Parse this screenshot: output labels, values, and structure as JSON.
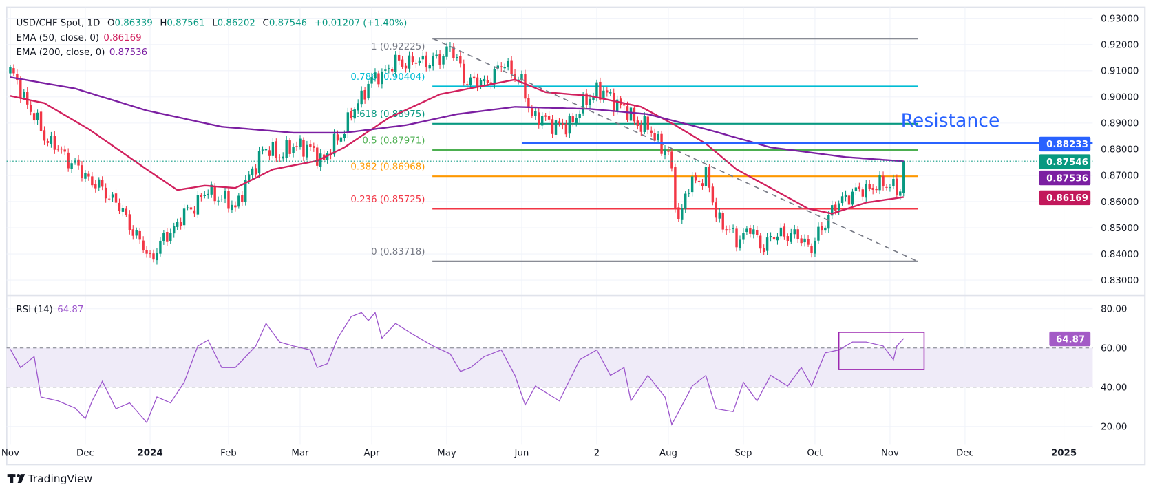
{
  "header": {
    "symbol": "USD/CHF Spot, 1D",
    "o_label": "O",
    "o_value": "0.86339",
    "h_label": "H",
    "h_value": "0.87561",
    "l_label": "L",
    "l_value": "0.86202",
    "c_label": "C",
    "c_value": "0.87546",
    "change": "+0.01207 (+1.40%)",
    "ema50_label": "EMA (50, close, 0)",
    "ema50_value": "0.86169",
    "ema200_label": "EMA (200, close, 0)",
    "ema200_value": "0.87536",
    "rsi_label": "RSI (14)",
    "rsi_value": "64.87"
  },
  "branding": {
    "logo_text": "TradingView"
  },
  "colors": {
    "up": "#089981",
    "down": "#f23645",
    "ema50": "#d1205d",
    "ema200": "#7b1fa2",
    "rsi": "#9c55cc",
    "resistance": "#2962ff",
    "trend": "#787b86"
  },
  "chart_data": [
    {
      "type": "candlestick",
      "title": "USD/CHF Spot, 1D",
      "ylim": [
        0.825,
        0.935
      ],
      "y_ticks": [
        "0.93000",
        "0.92000",
        "0.91000",
        "0.90000",
        "0.89000",
        "0.88000",
        "0.87000",
        "0.86000",
        "0.85000",
        "0.84000",
        "0.83000"
      ],
      "y_tick_values": [
        0.93,
        0.92,
        0.91,
        0.9,
        0.89,
        0.88,
        0.87,
        0.86,
        0.85,
        0.84,
        0.83
      ],
      "x_unit": "trading-day index",
      "x_ticks": [
        {
          "label": "Nov",
          "bar": 0,
          "bold": false
        },
        {
          "label": "Dec",
          "bar": 22,
          "bold": false
        },
        {
          "label": "2024",
          "bar": 41,
          "bold": true
        },
        {
          "label": "Feb",
          "bar": 64,
          "bold": false
        },
        {
          "label": "Mar",
          "bar": 85,
          "bold": false
        },
        {
          "label": "Apr",
          "bar": 106,
          "bold": false
        },
        {
          "label": "May",
          "bar": 128,
          "bold": false
        },
        {
          "label": "Jun",
          "bar": 150,
          "bold": false
        },
        {
          "label": "2",
          "bar": 172,
          "bold": false
        },
        {
          "label": "Aug",
          "bar": 193,
          "bold": false
        },
        {
          "label": "Sep",
          "bar": 215,
          "bold": false
        },
        {
          "label": "Oct",
          "bar": 236,
          "bold": false
        },
        {
          "label": "Nov",
          "bar": 258,
          "bold": false
        },
        {
          "label": "Dec",
          "bar": 280,
          "bold": false
        },
        {
          "label": "2025",
          "bar": 309,
          "bold": true
        }
      ],
      "close_keypoints": [
        [
          0,
          0.91
        ],
        [
          10,
          0.885
        ],
        [
          22,
          0.87
        ],
        [
          31,
          0.86
        ],
        [
          41,
          0.838
        ],
        [
          43,
          0.842
        ],
        [
          51,
          0.855
        ],
        [
          58,
          0.864
        ],
        [
          66,
          0.858
        ],
        [
          74,
          0.88
        ],
        [
          79,
          0.878
        ],
        [
          85,
          0.882
        ],
        [
          92,
          0.876
        ],
        [
          98,
          0.888
        ],
        [
          105,
          0.905
        ],
        [
          113,
          0.913
        ],
        [
          126,
          0.914
        ],
        [
          129,
          0.92
        ],
        [
          133,
          0.907
        ],
        [
          139,
          0.905
        ],
        [
          145,
          0.913
        ],
        [
          150,
          0.905
        ],
        [
          153,
          0.893
        ],
        [
          163,
          0.888
        ],
        [
          167,
          0.895
        ],
        [
          172,
          0.903
        ],
        [
          178,
          0.898
        ],
        [
          184,
          0.89
        ],
        [
          187,
          0.888
        ],
        [
          193,
          0.878
        ],
        [
          196,
          0.853
        ],
        [
          199,
          0.866
        ],
        [
          204,
          0.87
        ],
        [
          207,
          0.855
        ],
        [
          213,
          0.845
        ],
        [
          217,
          0.85
        ],
        [
          220,
          0.843
        ],
        [
          226,
          0.848
        ],
        [
          232,
          0.846
        ],
        [
          235,
          0.842
        ],
        [
          240,
          0.855
        ],
        [
          245,
          0.862
        ],
        [
          251,
          0.865
        ],
        [
          258,
          0.867
        ],
        [
          261,
          0.8634
        ]
      ],
      "last_bar": {
        "bar": 262,
        "open": 0.86339,
        "high": 0.87561,
        "low": 0.86202,
        "close": 0.87546
      },
      "series": [
        {
          "name": "EMA (50, close, 0)",
          "last": 0.86169,
          "points": [
            [
              0,
              0.9004
            ],
            [
              10,
              0.8976
            ],
            [
              23,
              0.8877
            ],
            [
              40,
              0.8723
            ],
            [
              49,
              0.8644
            ],
            [
              57,
              0.8661
            ],
            [
              66,
              0.8652
            ],
            [
              77,
              0.8723
            ],
            [
              90,
              0.8756
            ],
            [
              98,
              0.8807
            ],
            [
              111,
              0.892
            ],
            [
              126,
              0.901
            ],
            [
              137,
              0.9038
            ],
            [
              148,
              0.9066
            ],
            [
              157,
              0.9018
            ],
            [
              170,
              0.9004
            ],
            [
              185,
              0.8962
            ],
            [
              195,
              0.8892
            ],
            [
              204,
              0.8821
            ],
            [
              213,
              0.8723
            ],
            [
              223,
              0.8652
            ],
            [
              234,
              0.8573
            ],
            [
              241,
              0.8554
            ],
            [
              251,
              0.8596
            ],
            [
              262,
              0.8617
            ]
          ]
        },
        {
          "name": "EMA (200, close, 0)",
          "last": 0.87536,
          "points": [
            [
              0,
              0.9075
            ],
            [
              19,
              0.9032
            ],
            [
              40,
              0.8948
            ],
            [
              62,
              0.8886
            ],
            [
              83,
              0.8863
            ],
            [
              98,
              0.8863
            ],
            [
              116,
              0.8892
            ],
            [
              131,
              0.8934
            ],
            [
              148,
              0.8962
            ],
            [
              170,
              0.8954
            ],
            [
              187,
              0.8934
            ],
            [
              204,
              0.8877
            ],
            [
              223,
              0.8807
            ],
            [
              245,
              0.877
            ],
            [
              262,
              0.8754
            ]
          ]
        }
      ],
      "fibonacci": [
        {
          "label": "1 (0.92225)",
          "value": 0.92225,
          "color": "#787b86"
        },
        {
          "label": "0.786 (0.90404)",
          "value": 0.90404,
          "color": "#00bcd4"
        },
        {
          "label": "0.618 (0.88975)",
          "value": 0.88975,
          "color": "#089981"
        },
        {
          "label": "0.5 (0.87971)",
          "value": 0.87971,
          "color": "#4caf50"
        },
        {
          "label": "0.382 (0.86968)",
          "value": 0.86968,
          "color": "#ff9800"
        },
        {
          "label": "0.236 (0.85725)",
          "value": 0.85725,
          "color": "#f23645"
        },
        {
          "label": "0 (0.83718)",
          "value": 0.83718,
          "color": "#787b86"
        }
      ],
      "resistance": {
        "label": "Resistance",
        "value": 0.88233,
        "from_bar": 150
      },
      "trendline": {
        "from": [
          124,
          0.92225
        ],
        "to": [
          266,
          0.8372
        ]
      },
      "price_tags": [
        {
          "text": "0.88233",
          "color": "#2962ff"
        },
        {
          "text": "0.87546",
          "color": "#089981"
        },
        {
          "text": "0.87536",
          "color": "#7b1fa2"
        },
        {
          "text": "0.86169",
          "color": "#c2185b"
        }
      ]
    },
    {
      "type": "line",
      "title": "RSI (14)",
      "ylim": [
        15,
        85
      ],
      "y_ticks": [
        "80.00",
        "60.00",
        "40.00",
        "20.00"
      ],
      "y_tick_values": [
        80,
        60,
        40,
        20
      ],
      "band": [
        40,
        60
      ],
      "last": "64.87",
      "points": [
        [
          0,
          59.4
        ],
        [
          3,
          50
        ],
        [
          7,
          55.6
        ],
        [
          9,
          35
        ],
        [
          14,
          33
        ],
        [
          19,
          29.4
        ],
        [
          22,
          24
        ],
        [
          24,
          33
        ],
        [
          27,
          43
        ],
        [
          31,
          29
        ],
        [
          35,
          32
        ],
        [
          38,
          26
        ],
        [
          40,
          22
        ],
        [
          43,
          35
        ],
        [
          47,
          32
        ],
        [
          51,
          42.5
        ],
        [
          55,
          61
        ],
        [
          58,
          64
        ],
        [
          62,
          50
        ],
        [
          66,
          50
        ],
        [
          72,
          61
        ],
        [
          75,
          72.5
        ],
        [
          79,
          63
        ],
        [
          83,
          61
        ],
        [
          88,
          59
        ],
        [
          90,
          50
        ],
        [
          93,
          52
        ],
        [
          96,
          65
        ],
        [
          100,
          76
        ],
        [
          103,
          78
        ],
        [
          105,
          74
        ],
        [
          107,
          78
        ],
        [
          109,
          65
        ],
        [
          113,
          72.5
        ],
        [
          118,
          67
        ],
        [
          124,
          61
        ],
        [
          129,
          57
        ],
        [
          132,
          48
        ],
        [
          135,
          50
        ],
        [
          139,
          55.6
        ],
        [
          144,
          59
        ],
        [
          148,
          46
        ],
        [
          151,
          31
        ],
        [
          154,
          40.6
        ],
        [
          161,
          33
        ],
        [
          167,
          54
        ],
        [
          172,
          59
        ],
        [
          176,
          46
        ],
        [
          180,
          50
        ],
        [
          182,
          33
        ],
        [
          187,
          46
        ],
        [
          192,
          35
        ],
        [
          194,
          21
        ],
        [
          196,
          27.5
        ],
        [
          200,
          40.6
        ],
        [
          204,
          46
        ],
        [
          207,
          29
        ],
        [
          212,
          27.5
        ],
        [
          215,
          42.5
        ],
        [
          219,
          33
        ],
        [
          223,
          46
        ],
        [
          228,
          40.6
        ],
        [
          232,
          50
        ],
        [
          235,
          40.6
        ],
        [
          239,
          57.5
        ],
        [
          243,
          59
        ],
        [
          247,
          63
        ],
        [
          251,
          63
        ],
        [
          256,
          61
        ],
        [
          259,
          54
        ],
        [
          260,
          61
        ],
        [
          262,
          64.87
        ]
      ],
      "highlight_box": {
        "from_bar": 243,
        "to_bar": 268,
        "range": [
          49,
          68
        ]
      }
    }
  ]
}
